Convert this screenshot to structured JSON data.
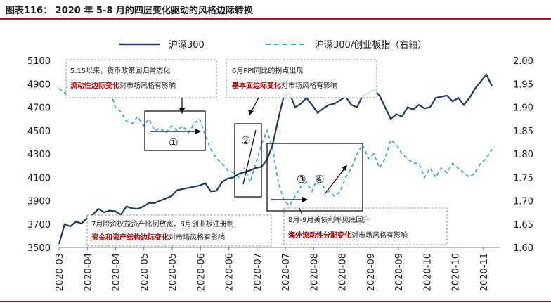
{
  "figure_title": "图表116： 2020 年 5-8 月的四层变化驱动的风格边际转换",
  "colors": {
    "rule": "#b5121b",
    "series1": "#1f3864",
    "series2": "#3aa7d9",
    "highlight": "#c00000"
  },
  "chart_data": {
    "type": "line",
    "title": "",
    "x_ticks": [
      "2020-03",
      "2020-04",
      "2020-04",
      "2020-05",
      "2020-05",
      "2020-06",
      "2020-06",
      "2020-07",
      "2020-07",
      "2020-08",
      "2020-08",
      "2020-09",
      "2020-09",
      "2020-10",
      "2020-10",
      "2020-11"
    ],
    "y_left": {
      "min": 3500,
      "max": 5100,
      "ticks": [
        "3500",
        "3700",
        "3900",
        "4100",
        "4300",
        "4500",
        "4700",
        "4900",
        "5100"
      ]
    },
    "y_right": {
      "min": 1.6,
      "max": 2.0,
      "ticks": [
        "1.60",
        "1.65",
        "1.70",
        "1.75",
        "1.80",
        "1.85",
        "1.90",
        "1.95",
        "2.00"
      ],
      "label": ""
    },
    "legend_position": "top",
    "series": [
      {
        "name": "沪深300",
        "axis": "left",
        "style": "solid",
        "points": [
          [
            0,
            3530
          ],
          [
            0.3,
            3700
          ],
          [
            0.6,
            3680
          ],
          [
            0.9,
            3720
          ],
          [
            1.2,
            3705
          ],
          [
            1.5,
            3750
          ],
          [
            1.8,
            3780
          ],
          [
            2.1,
            3830
          ],
          [
            2.4,
            3800
          ],
          [
            2.7,
            3815
          ],
          [
            3.0,
            3810
          ],
          [
            3.3,
            3780
          ],
          [
            3.6,
            3850
          ],
          [
            3.9,
            3835
          ],
          [
            4.2,
            3830
          ],
          [
            4.5,
            3850
          ],
          [
            4.8,
            3880
          ],
          [
            5.1,
            3880
          ],
          [
            5.4,
            3900
          ],
          [
            5.7,
            3920
          ],
          [
            6.0,
            3940
          ],
          [
            6.3,
            3990
          ],
          [
            6.6,
            4000
          ],
          [
            6.9,
            4010
          ],
          [
            7.2,
            4020
          ],
          [
            7.5,
            4030
          ],
          [
            7.8,
            4050
          ],
          [
            8.1,
            3980
          ],
          [
            8.4,
            3985
          ],
          [
            8.7,
            4060
          ],
          [
            9.0,
            4090
          ],
          [
            9.3,
            4100
          ],
          [
            9.6,
            4130
          ],
          [
            9.9,
            4145
          ],
          [
            10.2,
            4160
          ],
          [
            10.5,
            4180
          ],
          [
            10.8,
            4190
          ],
          [
            11.1,
            4250
          ],
          [
            11.4,
            4380
          ],
          [
            11.7,
            4600
          ],
          [
            12.0,
            4800
          ],
          [
            12.3,
            4820
          ],
          [
            12.6,
            4700
          ],
          [
            12.9,
            4730
          ],
          [
            13.2,
            4780
          ],
          [
            13.5,
            4720
          ],
          [
            13.8,
            4650
          ],
          [
            14.1,
            4690
          ],
          [
            14.4,
            4720
          ],
          [
            14.7,
            4730
          ],
          [
            15.0,
            4760
          ],
          [
            15.3,
            4790
          ],
          [
            15.6,
            4720
          ],
          [
            15.9,
            4700
          ],
          [
            16.2,
            4800
          ],
          [
            16.5,
            4820
          ],
          [
            16.8,
            4850
          ],
          [
            17.1,
            4800
          ],
          [
            17.4,
            4700
          ],
          [
            17.7,
            4600
          ],
          [
            18.0,
            4640
          ],
          [
            18.3,
            4620
          ],
          [
            18.6,
            4700
          ],
          [
            18.9,
            4680
          ],
          [
            19.2,
            4720
          ],
          [
            19.5,
            4690
          ],
          [
            19.8,
            4700
          ],
          [
            20.1,
            4780
          ],
          [
            20.4,
            4790
          ],
          [
            20.7,
            4800
          ],
          [
            21.0,
            4750
          ],
          [
            21.3,
            4780
          ],
          [
            21.6,
            4720
          ],
          [
            21.9,
            4780
          ],
          [
            22.2,
            4860
          ],
          [
            22.5,
            4920
          ],
          [
            22.8,
            4980
          ],
          [
            23.1,
            4880
          ]
        ]
      },
      {
        "name": "沪深300/创业板指（右轴）",
        "axis": "right",
        "style": "dashed",
        "points": [
          [
            0,
            1.94
          ],
          [
            0.3,
            1.93
          ],
          [
            0.6,
            1.935
          ],
          [
            0.9,
            1.945
          ],
          [
            1.2,
            1.935
          ],
          [
            1.5,
            1.955
          ],
          [
            1.8,
            1.95
          ],
          [
            2.1,
            1.925
          ],
          [
            2.4,
            1.93
          ],
          [
            2.7,
            1.94
          ],
          [
            3.0,
            1.9
          ],
          [
            3.3,
            1.89
          ],
          [
            3.6,
            1.87
          ],
          [
            3.9,
            1.865
          ],
          [
            4.2,
            1.88
          ],
          [
            4.5,
            1.86
          ],
          [
            4.8,
            1.875
          ],
          [
            5.1,
            1.85
          ],
          [
            5.4,
            1.855
          ],
          [
            5.7,
            1.845
          ],
          [
            6.0,
            1.86
          ],
          [
            6.3,
            1.85
          ],
          [
            6.6,
            1.86
          ],
          [
            6.9,
            1.845
          ],
          [
            7.2,
            1.865
          ],
          [
            7.5,
            1.875
          ],
          [
            7.8,
            1.84
          ],
          [
            8.1,
            1.81
          ],
          [
            8.4,
            1.79
          ],
          [
            8.7,
            1.78
          ],
          [
            9.0,
            1.765
          ],
          [
            9.3,
            1.76
          ],
          [
            9.6,
            1.75
          ],
          [
            9.9,
            1.77
          ],
          [
            10.2,
            1.74
          ],
          [
            10.5,
            1.78
          ],
          [
            10.8,
            1.82
          ],
          [
            11.1,
            1.85
          ],
          [
            11.4,
            1.81
          ],
          [
            11.7,
            1.74
          ],
          [
            12.0,
            1.7
          ],
          [
            12.3,
            1.69
          ],
          [
            12.6,
            1.71
          ],
          [
            12.9,
            1.73
          ],
          [
            13.2,
            1.74
          ],
          [
            13.5,
            1.72
          ],
          [
            13.8,
            1.75
          ],
          [
            14.1,
            1.73
          ],
          [
            14.4,
            1.72
          ],
          [
            14.7,
            1.71
          ],
          [
            15.0,
            1.72
          ],
          [
            15.3,
            1.75
          ],
          [
            15.6,
            1.77
          ],
          [
            15.9,
            1.8
          ],
          [
            16.2,
            1.82
          ],
          [
            16.5,
            1.79
          ],
          [
            16.8,
            1.8
          ],
          [
            17.1,
            1.77
          ],
          [
            17.4,
            1.79
          ],
          [
            17.7,
            1.83
          ],
          [
            18.0,
            1.82
          ],
          [
            18.3,
            1.8
          ],
          [
            18.6,
            1.79
          ],
          [
            18.9,
            1.78
          ],
          [
            19.2,
            1.78
          ],
          [
            19.5,
            1.75
          ],
          [
            19.8,
            1.77
          ],
          [
            20.1,
            1.75
          ],
          [
            20.4,
            1.77
          ],
          [
            20.7,
            1.76
          ],
          [
            21.0,
            1.78
          ],
          [
            21.3,
            1.77
          ],
          [
            21.6,
            1.76
          ],
          [
            21.9,
            1.75
          ],
          [
            22.2,
            1.76
          ],
          [
            22.5,
            1.78
          ],
          [
            22.8,
            1.79
          ],
          [
            23.1,
            1.81
          ]
        ]
      }
    ],
    "annotations": [
      {
        "line1": "5.15以来，货币政策回归常态化",
        "highlight": "流动性边际变化",
        "rest": "对市场风格有影响"
      },
      {
        "line1": "6月PPI同比的拐点出现",
        "highlight": "基本面边际变化",
        "rest": "对市场风格有影响"
      },
      {
        "line1": "7月险资权益资产比例放宽，8月创业板注册制",
        "highlight": "资金和资产结构边际变化",
        "rest": "对市场风格有影响"
      },
      {
        "line1": "8月-9月美债利率见底回升",
        "highlight": "海外流动性分配变化",
        "rest": "对市场风格有影响"
      }
    ],
    "markers": [
      "①",
      "②",
      "③",
      "④"
    ]
  }
}
